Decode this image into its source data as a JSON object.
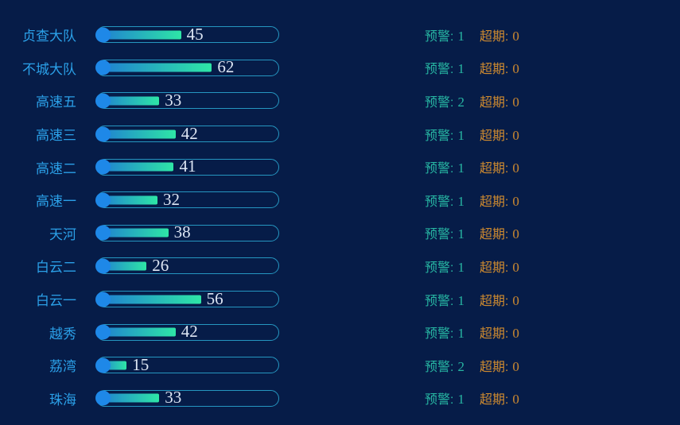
{
  "colors": {
    "bg": "#061c48",
    "label": "#2ba0e8",
    "outline": "#2596c0",
    "cap": "#1e88e8",
    "fill-start": "#1f7ed2",
    "fill-end": "#2ee6a6",
    "value-text": "#dde6f4",
    "warning": "#27b5a2",
    "overdue": "#cd8a30"
  },
  "labels": {
    "warning": "预警:",
    "overdue": "超期:"
  },
  "chart_data": {
    "type": "bar",
    "orientation": "horizontal",
    "title": "",
    "xlabel": "",
    "ylabel": "",
    "xlim": [
      0,
      100
    ],
    "grid": false,
    "legend": false,
    "categories": [
      "贞查大队",
      "不城大队",
      "高速五",
      "高速三",
      "高速二",
      "高速一",
      "天河",
      "白云二",
      "白云一",
      "越秀",
      "荔湾",
      "珠海"
    ],
    "values": [
      45,
      62,
      33,
      42,
      41,
      32,
      38,
      26,
      56,
      42,
      15,
      33
    ],
    "warning_counts": [
      1,
      1,
      2,
      1,
      1,
      1,
      1,
      1,
      1,
      1,
      2,
      1
    ],
    "overdue_counts": [
      0,
      0,
      0,
      0,
      0,
      0,
      0,
      0,
      0,
      0,
      0,
      0
    ]
  }
}
